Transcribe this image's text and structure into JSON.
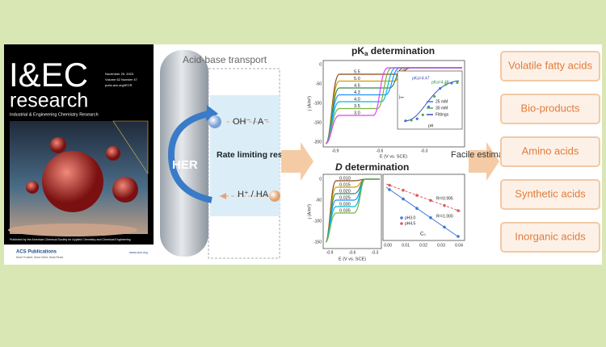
{
  "cover": {
    "masthead": "I&EC",
    "title": "research",
    "subtitle": "Industrial & Engineering Chemistry Research",
    "date": "November 29, 2023",
    "volume": "Volume 62 Number 47",
    "url": "pubs.acs.org/IECR",
    "publisher_note": "Published by the American Chemical Society for Applied Chemistry and Chemical Engineering",
    "acs": "ACS Publications",
    "acs_tagline": "Most Trusted. Most Cited. Most Read.",
    "acs_url": "www.acs.org"
  },
  "abstract": {
    "transport_label": "Acid-base transport",
    "her": "HER",
    "base_species": "OH⁻ / A⁻",
    "rate_label": "Rate limiting response",
    "acid_species": "H⁺ / HA",
    "pka_title": [
      "pK",
      "a",
      " determination"
    ],
    "d_title": [
      "D",
      " determination"
    ],
    "estimation": "Facile estimation",
    "applications": [
      "Volatile fatty acids",
      "Bio-products",
      "Amino acids",
      "Synthetic acids",
      "Inorganic acids"
    ],
    "pka_plot": {
      "curve_labels": [
        "5.5",
        "5.0",
        "4.5",
        "4.3",
        "4.0",
        "3.5",
        "3.0"
      ],
      "x_label": "E (V vs. SCE)",
      "y_label": "j (A/m²)",
      "x_ticks": [
        "-0.9",
        "-0.6",
        "-0.3"
      ],
      "y_ticks": [
        "0",
        "-50",
        "-100",
        "-150",
        "-200"
      ],
      "inset": {
        "fit_labels": [
          "pKa=4.47",
          "pKa=4.48"
        ],
        "legend": [
          "25 mM",
          "30 mM",
          "Fittings"
        ],
        "x_label": "pH",
        "y_label": "jₗᵢₘ"
      }
    },
    "d_plot": {
      "curve_labels": [
        "0.010",
        "0.015",
        "0.020",
        "0.025",
        "0.030",
        "0.035"
      ],
      "x_label": "E (V vs. SCE)",
      "y_label": "j (A/m²)",
      "x_ticks": [
        "-0.9",
        "-0.6",
        "-0.3"
      ],
      "y_ticks": [
        "0",
        "-50",
        "-100",
        "-150"
      ],
      "fit_labels": [
        "R²=0.995",
        "R²=1.000"
      ],
      "legend": [
        "pH3.0",
        "pH4.5"
      ],
      "conc_label": "C₀",
      "conc_ticks": [
        "0.00",
        "0.01",
        "0.02",
        "0.03",
        "0.04"
      ]
    }
  }
}
